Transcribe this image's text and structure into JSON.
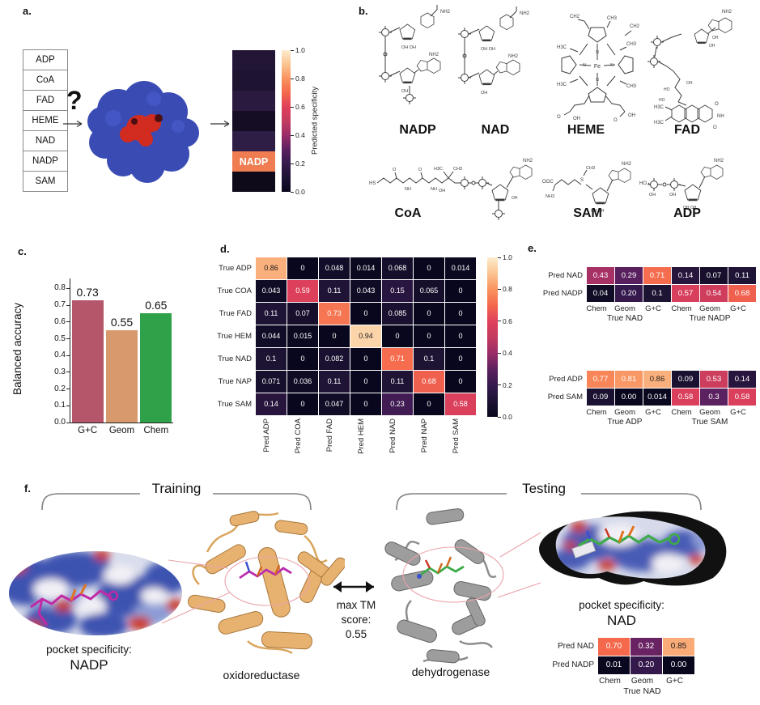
{
  "panel_labels": {
    "a": "a.",
    "b": "b.",
    "c": "c.",
    "d": "d.",
    "e": "e.",
    "f": "f."
  },
  "panel_a": {
    "cofactors": [
      "ADP",
      "CoA",
      "FAD",
      "HEME",
      "NAD",
      "NADP",
      "SAM"
    ],
    "question_mark": "?"
  },
  "panel_b": {
    "molecules": [
      "NADP",
      "NAD",
      "HEME",
      "FAD",
      "CoA",
      "SAM",
      "ADP"
    ]
  },
  "panel_f": {
    "training_label": "Training",
    "testing_label": "Testing",
    "left_pocket_caption": "pocket specificity:",
    "left_pocket_value": "NADP",
    "right_pocket_caption": "pocket specificity:",
    "right_pocket_value": "NAD",
    "left_protein_label": "oxidoreductase",
    "right_protein_label": "dehydrogenase",
    "tm_line1": "max TM",
    "tm_line2": "score:",
    "tm_line3": "0.55"
  },
  "chart_data": [
    {
      "id": "panel-c-bar",
      "type": "bar",
      "categories": [
        "G+C",
        "Geom",
        "Chem"
      ],
      "values": [
        0.73,
        0.55,
        0.65
      ],
      "value_labels": [
        "0.73",
        "0.55",
        "0.65"
      ],
      "colors": [
        "#b5566b",
        "#d89a6c",
        "#2fa148"
      ],
      "title": "",
      "xlabel": "",
      "ylabel": "Balanced accuracy",
      "yticks": [
        "0.0",
        "0.1",
        "0.2",
        "0.3",
        "0.4",
        "0.5",
        "0.6",
        "0.7",
        "0.8"
      ],
      "ylim": [
        0,
        0.86
      ],
      "grid": false
    },
    {
      "id": "panel-d-confusion",
      "type": "heatmap",
      "row_labels": [
        "True ADP",
        "True COA",
        "True FAD",
        "True HEM",
        "True NAD",
        "True NAP",
        "True SAM"
      ],
      "col_labels": [
        "Pred ADP",
        "Pred COA",
        "Pred FAD",
        "Pred HEM",
        "Pred NAD",
        "Pred NAP",
        "Pred SAM"
      ],
      "values": [
        [
          "0.86",
          "0",
          "0.048",
          "0.014",
          "0.068",
          "0",
          "0.014"
        ],
        [
          "0.043",
          "0.59",
          "0.11",
          "0.043",
          "0.15",
          "0.065",
          "0"
        ],
        [
          "0.11",
          "0.07",
          "0.73",
          "0",
          "0.085",
          "0",
          "0"
        ],
        [
          "0.044",
          "0.015",
          "0",
          "0.94",
          "0",
          "0",
          "0"
        ],
        [
          "0.1",
          "0",
          "0.082",
          "0",
          "0.71",
          "0.1",
          "0"
        ],
        [
          "0.071",
          "0.036",
          "0.11",
          "0",
          "0.11",
          "0.68",
          "0"
        ],
        [
          "0.14",
          "0",
          "0.047",
          "0",
          "0.23",
          "0",
          "0.58"
        ]
      ],
      "colorbar_ticks": [
        "1.0",
        "0.8",
        "0.6",
        "0.4",
        "0.2",
        "0.0"
      ]
    },
    {
      "id": "panel-e-nad-nadp",
      "type": "heatmap",
      "row_labels": [
        "Pred NAD",
        "Pred NADP"
      ],
      "col_labels": [
        "Chem",
        "Geom",
        "G+C",
        "Chem",
        "Geom",
        "G+C"
      ],
      "group_labels": [
        "True NAD",
        "True NADP"
      ],
      "values": [
        [
          "0.43",
          "0.29",
          "0.71",
          "0.14",
          "0.07",
          "0.11"
        ],
        [
          "0.04",
          "0.20",
          "0.1",
          "0.57",
          "0.54",
          "0.68"
        ]
      ]
    },
    {
      "id": "panel-e-adp-sam",
      "type": "heatmap",
      "row_labels": [
        "Pred ADP",
        "Pred SAM"
      ],
      "col_labels": [
        "Chem",
        "Geom",
        "G+C",
        "Chem",
        "Geom",
        "G+C"
      ],
      "group_labels": [
        "True ADP",
        "True SAM"
      ],
      "values": [
        [
          "0.77",
          "0.81",
          "0.86",
          "0.09",
          "0.53",
          "0.14"
        ],
        [
          "0.09",
          "0.00",
          "0.014",
          "0.58",
          "0.3",
          "0.58"
        ]
      ]
    },
    {
      "id": "panel-f-nad",
      "type": "heatmap",
      "row_labels": [
        "Pred NAD",
        "Pred NADP"
      ],
      "col_labels": [
        "Chem",
        "Geom",
        "G+C"
      ],
      "group_labels": [
        "True NAD"
      ],
      "values": [
        [
          "0.70",
          "0.32",
          "0.85"
        ],
        [
          "0.01",
          "0.20",
          "0.00"
        ]
      ]
    },
    {
      "id": "panel-a-specificity",
      "type": "heatmap-column",
      "rows": [
        "ADP",
        "CoA",
        "FAD",
        "HEME",
        "NAD",
        "NADP",
        "SAM"
      ],
      "cell_colors": [
        "#221535",
        "#1f1332",
        "#2a1a40",
        "#140d23",
        "#2e1d45",
        "#ef7d51",
        "#0f0a19"
      ],
      "annotated_row": "NADP",
      "colorbar_label": "Predicted specificity",
      "colorbar_ticks": [
        "1.0",
        "0.8",
        "0.6",
        "0.4",
        "0.2",
        "0.0"
      ]
    }
  ]
}
